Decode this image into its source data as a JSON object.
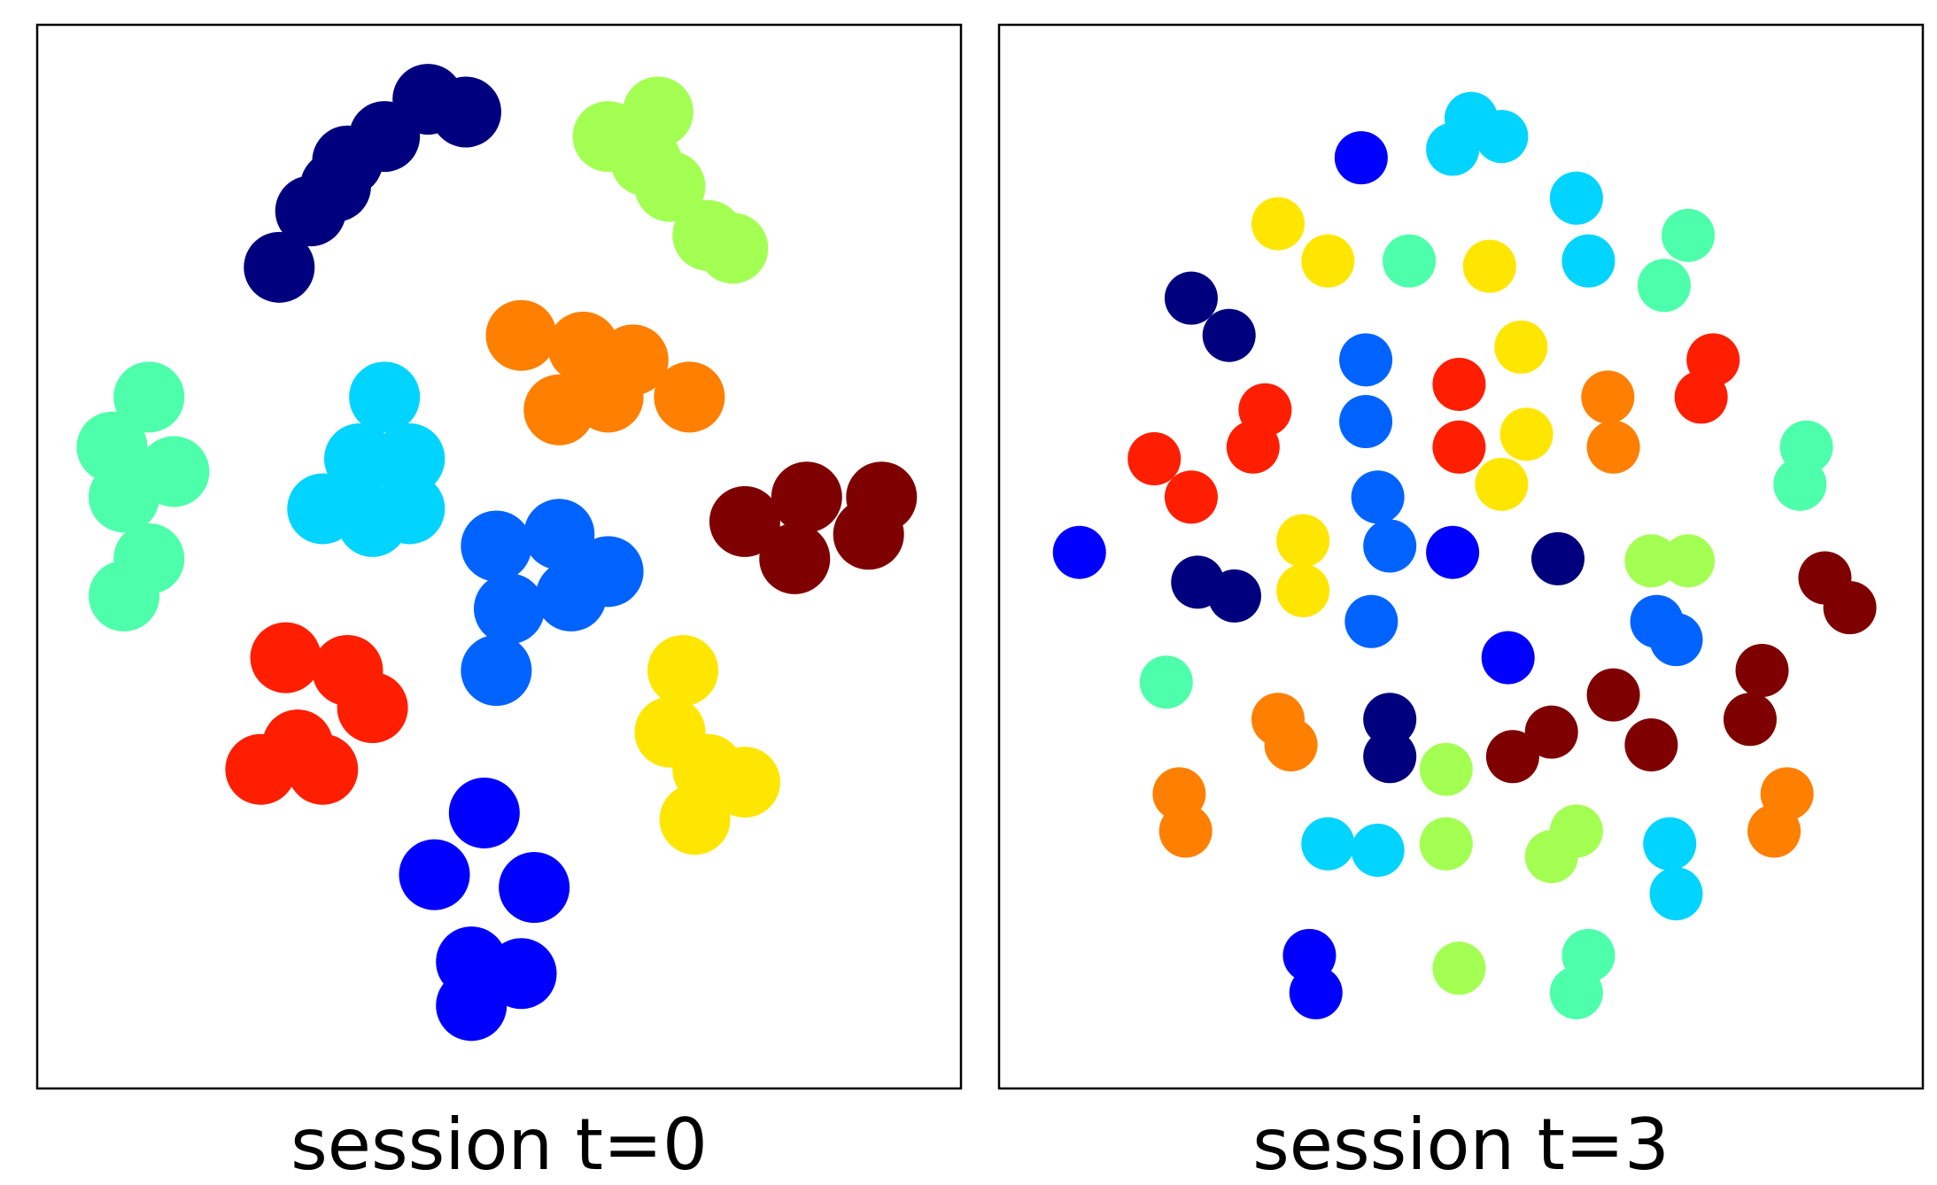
{
  "chart_data": [
    {
      "type": "scatter",
      "xlabel": "session t=0",
      "xlim": [
        0,
        100
      ],
      "ylim": [
        0,
        100
      ],
      "series": [
        {
          "color": "#00007f",
          "x": [
            26.2,
            29.6,
            33.6,
            37.6,
            42.3,
            46.4,
            32.3
          ],
          "y": [
            77.2,
            82.5,
            87.2,
            89.5,
            93.0,
            91.8,
            84.8
          ]
        },
        {
          "color": "#a4ff53",
          "x": [
            61.8,
            67.2,
            68.5,
            72.6,
            75.3,
            65.9
          ],
          "y": [
            89.5,
            91.8,
            84.8,
            80.2,
            79.0,
            87.2
          ]
        },
        {
          "color": "#ff7f00",
          "x": [
            52.4,
            59.1,
            64.5,
            56.5,
            61.8,
            70.6
          ],
          "y": [
            70.8,
            69.7,
            68.5,
            63.8,
            65.0,
            65.0
          ]
        },
        {
          "color": "#4dffaa",
          "x": [
            12.1,
            14.8,
            9.4,
            12.1,
            9.4,
            8.1
          ],
          "y": [
            65.0,
            58.0,
            55.6,
            49.8,
            46.3,
            60.3
          ]
        },
        {
          "color": "#00d4ff",
          "x": [
            37.6,
            34.9,
            40.3,
            30.9,
            36.3,
            40.3
          ],
          "y": [
            65.0,
            59.2,
            59.2,
            54.5,
            53.3,
            54.5
          ]
        },
        {
          "color": "#7f0000",
          "x": [
            76.6,
            83.3,
            91.4,
            82.0,
            90.0
          ],
          "y": [
            53.3,
            55.6,
            55.6,
            49.8,
            52.1
          ]
        },
        {
          "color": "#0063ff",
          "x": [
            49.7,
            56.5,
            61.8,
            51.1,
            49.7,
            57.8
          ],
          "y": [
            51.0,
            52.1,
            48.6,
            45.1,
            39.3,
            46.3
          ]
        },
        {
          "color": "#ff1e00",
          "x": [
            26.9,
            33.6,
            36.3,
            28.2,
            24.2,
            30.9
          ],
          "y": [
            40.5,
            39.3,
            35.8,
            32.3,
            30.0,
            30.0
          ]
        },
        {
          "color": "#ffe600",
          "x": [
            69.9,
            68.5,
            72.6,
            71.2,
            76.6
          ],
          "y": [
            39.3,
            33.5,
            30.0,
            25.3,
            28.8
          ]
        },
        {
          "color": "#0000ff",
          "x": [
            48.4,
            43.0,
            53.8,
            47.0,
            52.4,
            47.0
          ],
          "y": [
            25.9,
            20.1,
            18.9,
            11.9,
            10.8,
            7.8
          ]
        }
      ]
    },
    {
      "type": "scatter",
      "xlabel": "session t=3",
      "xlim": [
        0,
        100
      ],
      "ylim": [
        0,
        100
      ],
      "series": [
        {
          "color": "#0000ff",
          "x": [
            39.2,
            8.7,
            49.1,
            55.1,
            33.6,
            34.3
          ],
          "y": [
            87.5,
            50.4,
            50.4,
            40.5,
            12.5,
            9.0
          ]
        },
        {
          "color": "#00d4ff",
          "x": [
            51.1,
            49.1,
            54.4,
            62.5,
            63.8,
            35.6,
            41.0,
            72.6,
            73.3
          ],
          "y": [
            91.2,
            88.3,
            89.5,
            83.7,
            77.8,
            23.0,
            22.4,
            23.0,
            18.3
          ]
        },
        {
          "color": "#4dffaa",
          "x": [
            74.6,
            72.0,
            44.4,
            87.4,
            86.7,
            18.1,
            63.8,
            62.5
          ],
          "y": [
            80.2,
            75.5,
            77.8,
            60.3,
            56.8,
            38.2,
            12.5,
            9.0
          ]
        },
        {
          "color": "#ffe600",
          "x": [
            30.2,
            35.6,
            53.1,
            56.5,
            57.1,
            54.4,
            32.9,
            32.9
          ],
          "y": [
            81.3,
            77.8,
            77.3,
            69.7,
            61.5,
            56.8,
            51.5,
            46.8
          ]
        },
        {
          "color": "#00007f",
          "x": [
            20.8,
            24.9,
            21.5,
            25.5,
            60.5,
            42.3,
            42.3
          ],
          "y": [
            74.3,
            70.8,
            47.6,
            46.3,
            49.8,
            34.7,
            31.2
          ]
        },
        {
          "color": "#0063ff",
          "x": [
            39.7,
            39.7,
            41.0,
            42.3,
            71.2,
            73.3,
            40.3
          ],
          "y": [
            68.5,
            62.7,
            55.6,
            51.0,
            43.9,
            42.2,
            43.9
          ]
        },
        {
          "color": "#ff1e00",
          "x": [
            49.8,
            49.8,
            77.3,
            76.0,
            28.8,
            27.5,
            16.8,
            20.8
          ],
          "y": [
            66.2,
            60.3,
            68.5,
            65.0,
            63.8,
            60.3,
            59.2,
            55.6
          ]
        },
        {
          "color": "#ff7f00",
          "x": [
            65.9,
            66.5,
            30.2,
            31.6,
            19.5,
            20.2,
            85.3,
            83.9
          ],
          "y": [
            65.0,
            60.3,
            34.7,
            32.3,
            27.7,
            24.2,
            27.7,
            24.2
          ]
        },
        {
          "color": "#a4ff53",
          "x": [
            74.6,
            70.6,
            48.4,
            48.4,
            59.8,
            62.5,
            49.8
          ],
          "y": [
            49.6,
            49.6,
            30.0,
            23.0,
            21.8,
            24.2,
            11.3
          ]
        },
        {
          "color": "#7f0000",
          "x": [
            89.4,
            92.1,
            59.8,
            66.5,
            70.6,
            55.6,
            82.6,
            81.3
          ],
          "y": [
            48.0,
            45.2,
            33.5,
            37.0,
            32.3,
            31.2,
            39.3,
            34.7
          ]
        }
      ]
    }
  ]
}
